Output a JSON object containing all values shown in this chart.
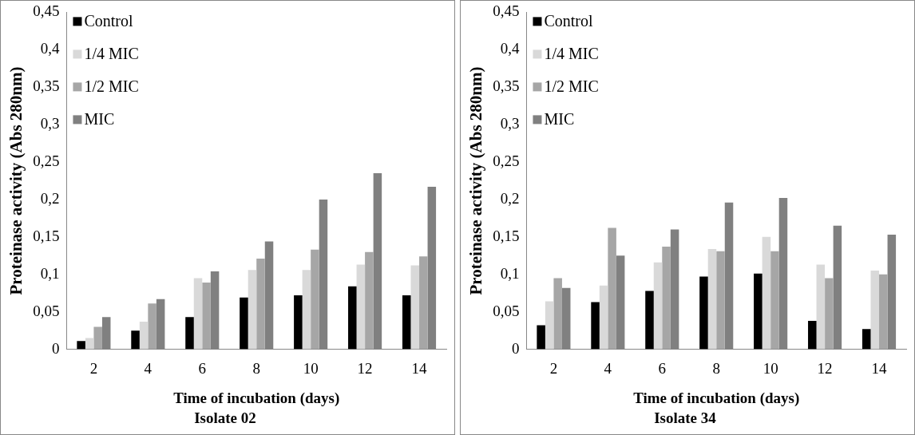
{
  "chart_data": [
    {
      "type": "bar",
      "title": "Isolate 02",
      "xlabel": "Time of incubation (days)",
      "ylabel": "Proteinase activity (Abs 280nm)",
      "categories": [
        "2",
        "4",
        "6",
        "8",
        "10",
        "12",
        "14"
      ],
      "series": [
        {
          "name": "Control",
          "color": "#000000",
          "values": [
            0.011,
            0.025,
            0.043,
            0.069,
            0.072,
            0.084,
            0.072
          ]
        },
        {
          "name": "1/4 MIC",
          "color": "#d9d9d9",
          "values": [
            0.015,
            0.037,
            0.095,
            0.106,
            0.106,
            0.113,
            0.112
          ]
        },
        {
          "name": "1/2 MIC",
          "color": "#a6a6a6",
          "values": [
            0.03,
            0.061,
            0.089,
            0.121,
            0.133,
            0.13,
            0.124
          ]
        },
        {
          "name": "MIC",
          "color": "#808080",
          "values": [
            0.043,
            0.067,
            0.104,
            0.144,
            0.2,
            0.235,
            0.217
          ]
        }
      ],
      "ylim": [
        0,
        0.45
      ],
      "yticks": [
        0,
        {
          "value": 0.05,
          "label": "0,05"
        },
        {
          "value": 0.1,
          "label": "0,1"
        },
        {
          "value": 0.15,
          "label": "0,15"
        },
        {
          "value": 0.2,
          "label": "0,2"
        },
        {
          "value": 0.25,
          "label": "0,25"
        },
        {
          "value": 0.3,
          "label": "0,3"
        },
        {
          "value": 0.35,
          "label": "0,35"
        },
        {
          "value": 0.4,
          "label": "0,4"
        },
        {
          "value": 0.45,
          "label": "0,45"
        }
      ],
      "grid": false,
      "legend": "top left"
    },
    {
      "type": "bar",
      "title": "Isolate 34",
      "xlabel": "Time of incubation (days)",
      "ylabel": "Proteinase activity (Abs 280nm)",
      "categories": [
        "2",
        "4",
        "6",
        "8",
        "10",
        "12",
        "14"
      ],
      "series": [
        {
          "name": "Control",
          "color": "#000000",
          "values": [
            0.032,
            0.063,
            0.078,
            0.097,
            0.101,
            0.038,
            0.027
          ]
        },
        {
          "name": "1/4 MIC",
          "color": "#d9d9d9",
          "values": [
            0.064,
            0.085,
            0.116,
            0.134,
            0.15,
            0.113,
            0.105
          ]
        },
        {
          "name": "1/2 MIC",
          "color": "#a6a6a6",
          "values": [
            0.095,
            0.162,
            0.137,
            0.131,
            0.131,
            0.095,
            0.1
          ]
        },
        {
          "name": "MIC",
          "color": "#808080",
          "values": [
            0.082,
            0.125,
            0.16,
            0.196,
            0.202,
            0.165,
            0.153
          ]
        }
      ],
      "ylim": [
        0,
        0.45
      ],
      "yticks": [
        0,
        {
          "value": 0.05,
          "label": "0,05"
        },
        {
          "value": 0.1,
          "label": "0,1"
        },
        {
          "value": 0.15,
          "label": "0,15"
        },
        {
          "value": 0.2,
          "label": "0,2"
        },
        {
          "value": 0.25,
          "label": "0,25"
        },
        {
          "value": 0.3,
          "label": "0,3"
        },
        {
          "value": 0.35,
          "label": "0,35"
        },
        {
          "value": 0.4,
          "label": "0,4"
        },
        {
          "value": 0.45,
          "label": "0,45"
        }
      ],
      "grid": false,
      "legend": "top left"
    }
  ]
}
